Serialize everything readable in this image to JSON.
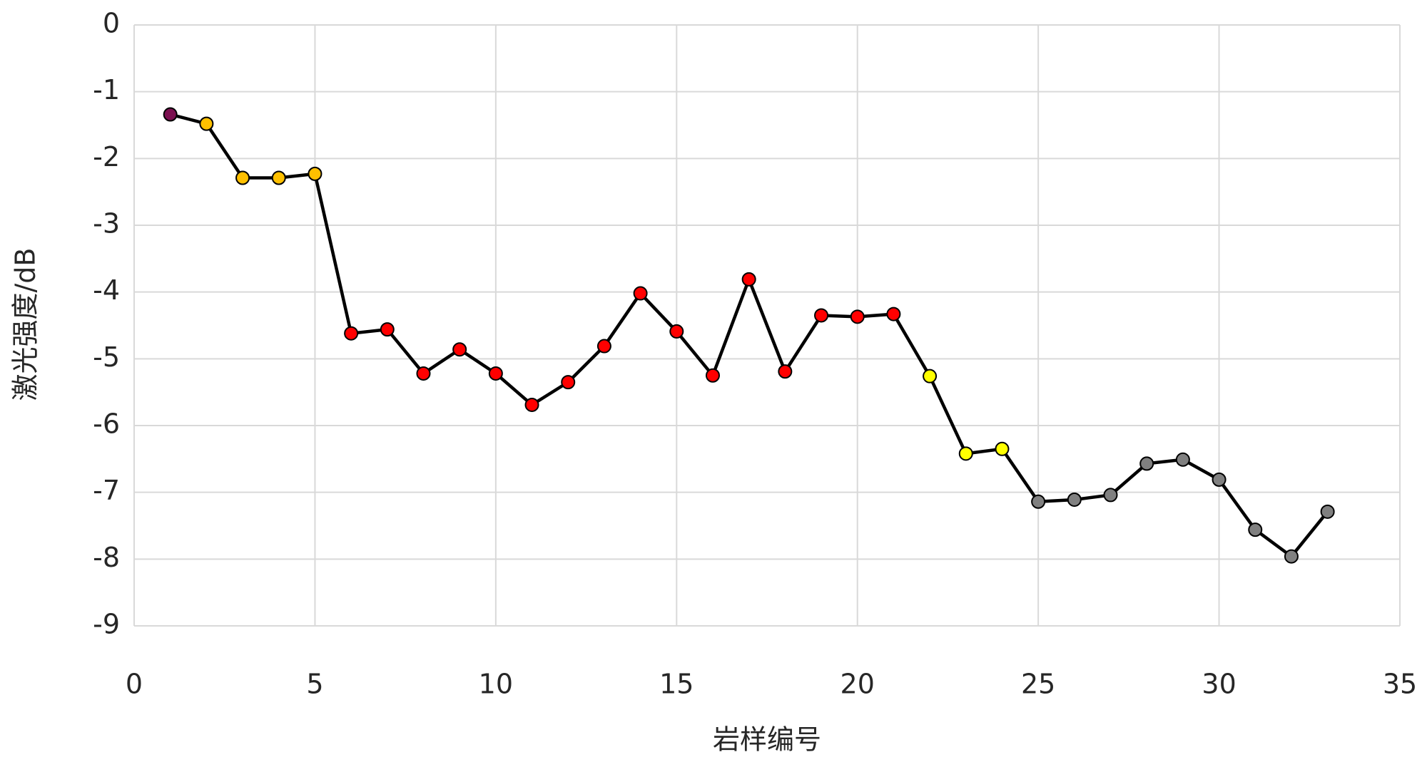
{
  "chart_data": {
    "type": "line",
    "x_label": "岩样编号",
    "y_label": "激光强度/dB",
    "x": [
      1,
      2,
      3,
      4,
      5,
      6,
      7,
      8,
      9,
      10,
      11,
      12,
      13,
      14,
      15,
      16,
      17,
      18,
      19,
      20,
      21,
      22,
      23,
      24,
      25,
      26,
      27,
      28,
      29,
      30,
      31,
      32,
      33
    ],
    "values": [
      -1.34,
      -1.48,
      -2.29,
      -2.29,
      -2.23,
      -4.62,
      -4.56,
      -5.22,
      -4.86,
      -5.22,
      -5.69,
      -5.35,
      -4.81,
      -4.02,
      -4.59,
      -5.25,
      -3.81,
      -5.19,
      -4.35,
      -4.37,
      -4.33,
      -5.26,
      -6.42,
      -6.35,
      -7.14,
      -7.11,
      -7.04,
      -6.57,
      -6.51,
      -6.81,
      -7.56,
      -7.96,
      -7.29
    ],
    "line_color": "#000000",
    "marker_colors": [
      "#7b1050",
      "#ffc000",
      "#ffc000",
      "#ffc000",
      "#ffc000",
      "#ff0000",
      "#ff0000",
      "#ff0000",
      "#ff0000",
      "#ff0000",
      "#ff0000",
      "#ff0000",
      "#ff0000",
      "#ff0000",
      "#ff0000",
      "#ff0000",
      "#ff0000",
      "#ff0000",
      "#ff0000",
      "#ff0000",
      "#ff0000",
      "#ffff00",
      "#ffff00",
      "#ffff00",
      "#808080",
      "#808080",
      "#808080",
      "#808080",
      "#808080",
      "#808080",
      "#808080",
      "#808080",
      "#808080"
    ],
    "xlim": [
      0,
      35
    ],
    "xticks": [
      0,
      5,
      10,
      15,
      20,
      25,
      30,
      35
    ],
    "ylim": [
      -9,
      0
    ],
    "yticks": [
      -9,
      -8,
      -7,
      -6,
      -5,
      -4,
      -3,
      -2,
      -1,
      0
    ],
    "grid": true
  }
}
